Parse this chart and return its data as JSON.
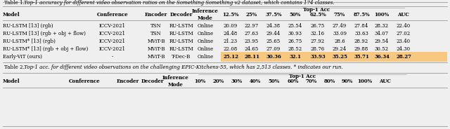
{
  "title1": "Table 1. Top-1 accuracy for different video observation ratios on the Something Something v2 dataset, which contains 174 classes.",
  "title2": "Table 2. Top-1 acc. for different video observations on the challenging EPIC-Kitchens-55, which has 2,513 classes. * indicates our run.",
  "table1_rows": [
    [
      "RU-LSTM [13] (rgb)",
      "ICCV-2021",
      "TSN",
      "RU-LSTM",
      "Online",
      "20.09",
      "22.97",
      "24.38",
      "25.54",
      "26.75",
      "27.49",
      "27.84",
      "28.32",
      "22.40"
    ],
    [
      "RU-LSTM [13] (rgb + obj + flow)",
      "ICCV-2021",
      "TSN",
      "RU-LSTM",
      "Online",
      "24.48",
      "27.63",
      "29.44",
      "30.93",
      "32.16",
      "33.09",
      "33.63",
      "34.07",
      "27.02"
    ],
    [
      "RU-LSTM* [13] (rgb)",
      "ICCV-2021",
      "MViT-B",
      "RU-LSTM",
      "Online",
      "21.23",
      "23.95",
      "25.65",
      "26.75",
      "27.92",
      "28.6",
      "28.92",
      "29.54",
      "23.40"
    ],
    [
      "RU-LSTM* [13] (rgb + obj + flow)",
      "ICCV-2021",
      "MViT-B",
      "RU-LSTM",
      "Online",
      "22.08",
      "24.65",
      "27.09",
      "28.52",
      "28.76",
      "29.24",
      "29.88",
      "30.52",
      "24.30"
    ],
    [
      "Early-ViT (ours)",
      "-",
      "MViT-B",
      "T-Dec-B",
      "Online",
      "25.12",
      "28.11",
      "30.36",
      "32.1",
      "33.93",
      "35.25",
      "35.71",
      "36.34",
      "28.27"
    ]
  ],
  "table1_headers": [
    "Model",
    "Conference",
    "Encoder",
    "Decoder",
    "Inference\nMode",
    "12.5%",
    "25%",
    "37.5%",
    "50%",
    "62.5%",
    "75%",
    "87.5%",
    "100%",
    "AUC"
  ],
  "table2_headers": [
    "Model",
    "Conference",
    "Encoder",
    "Decoder",
    "Inference\nMode",
    "10%",
    "20%",
    "30%",
    "40%",
    "50%",
    "60%",
    "70%",
    "80%",
    "90%",
    "100%",
    "AUC"
  ],
  "highlight_row": 4,
  "highlight_color": "#f8c880",
  "bg_color": "#efefef",
  "line_color": "#999999",
  "fontsize": 5.0,
  "title_fontsize": 5.1
}
